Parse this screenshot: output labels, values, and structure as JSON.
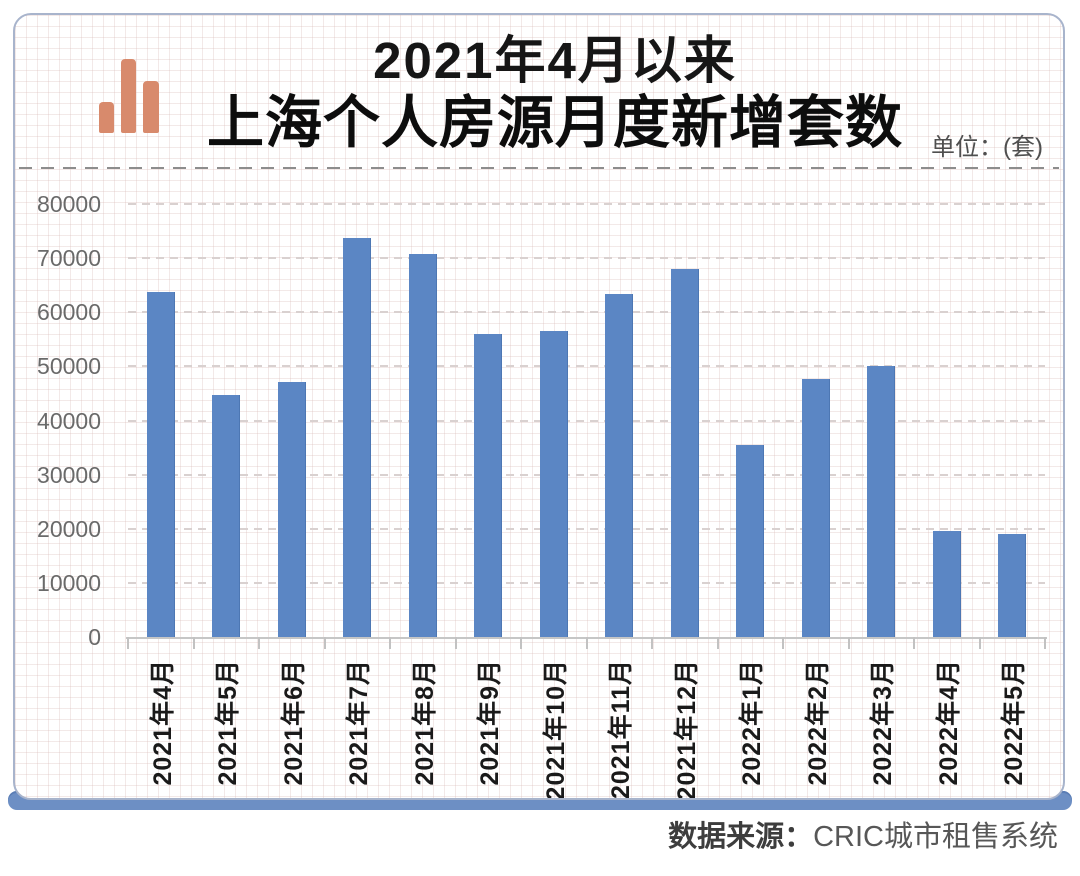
{
  "header": {
    "title_line1": "2021年4月以来",
    "title_line2": "上海个人房源月度新增套数",
    "unit_label": "单位：(套)",
    "logo_icon": "bar-chart-icon"
  },
  "footer": {
    "source_label": "数据来源：",
    "source_value": "CRIC城市租售系统"
  },
  "colors": {
    "bar": "#5b86c4",
    "accent_ribbon": "#6d8fc4",
    "card_border": "#a8b4cc",
    "logo": "#d88a6c",
    "gridline": "#d9d1d0",
    "axis": "#c6c6c6"
  },
  "chart_data": {
    "type": "bar",
    "title": "2021年4月以来 上海个人房源月度新增套数",
    "unit": "套",
    "categories": [
      "2021年4月",
      "2021年5月",
      "2021年6月",
      "2021年7月",
      "2021年8月",
      "2021年9月",
      "2021年10月",
      "2021年11月",
      "2021年12月",
      "2022年1月",
      "2022年2月",
      "2022年3月",
      "2022年4月",
      "2022年5月"
    ],
    "values": [
      63700,
      44700,
      47200,
      73700,
      70800,
      55900,
      56600,
      63300,
      68000,
      35400,
      47700,
      50000,
      19600,
      19100
    ],
    "xlabel": "",
    "ylabel": "",
    "ylim": [
      0,
      80000
    ],
    "y_ticks": [
      0,
      10000,
      20000,
      30000,
      40000,
      50000,
      60000,
      70000,
      80000
    ],
    "grid": "dashed-horizontal",
    "legend": "none",
    "bar_color": "#5b86c4"
  }
}
